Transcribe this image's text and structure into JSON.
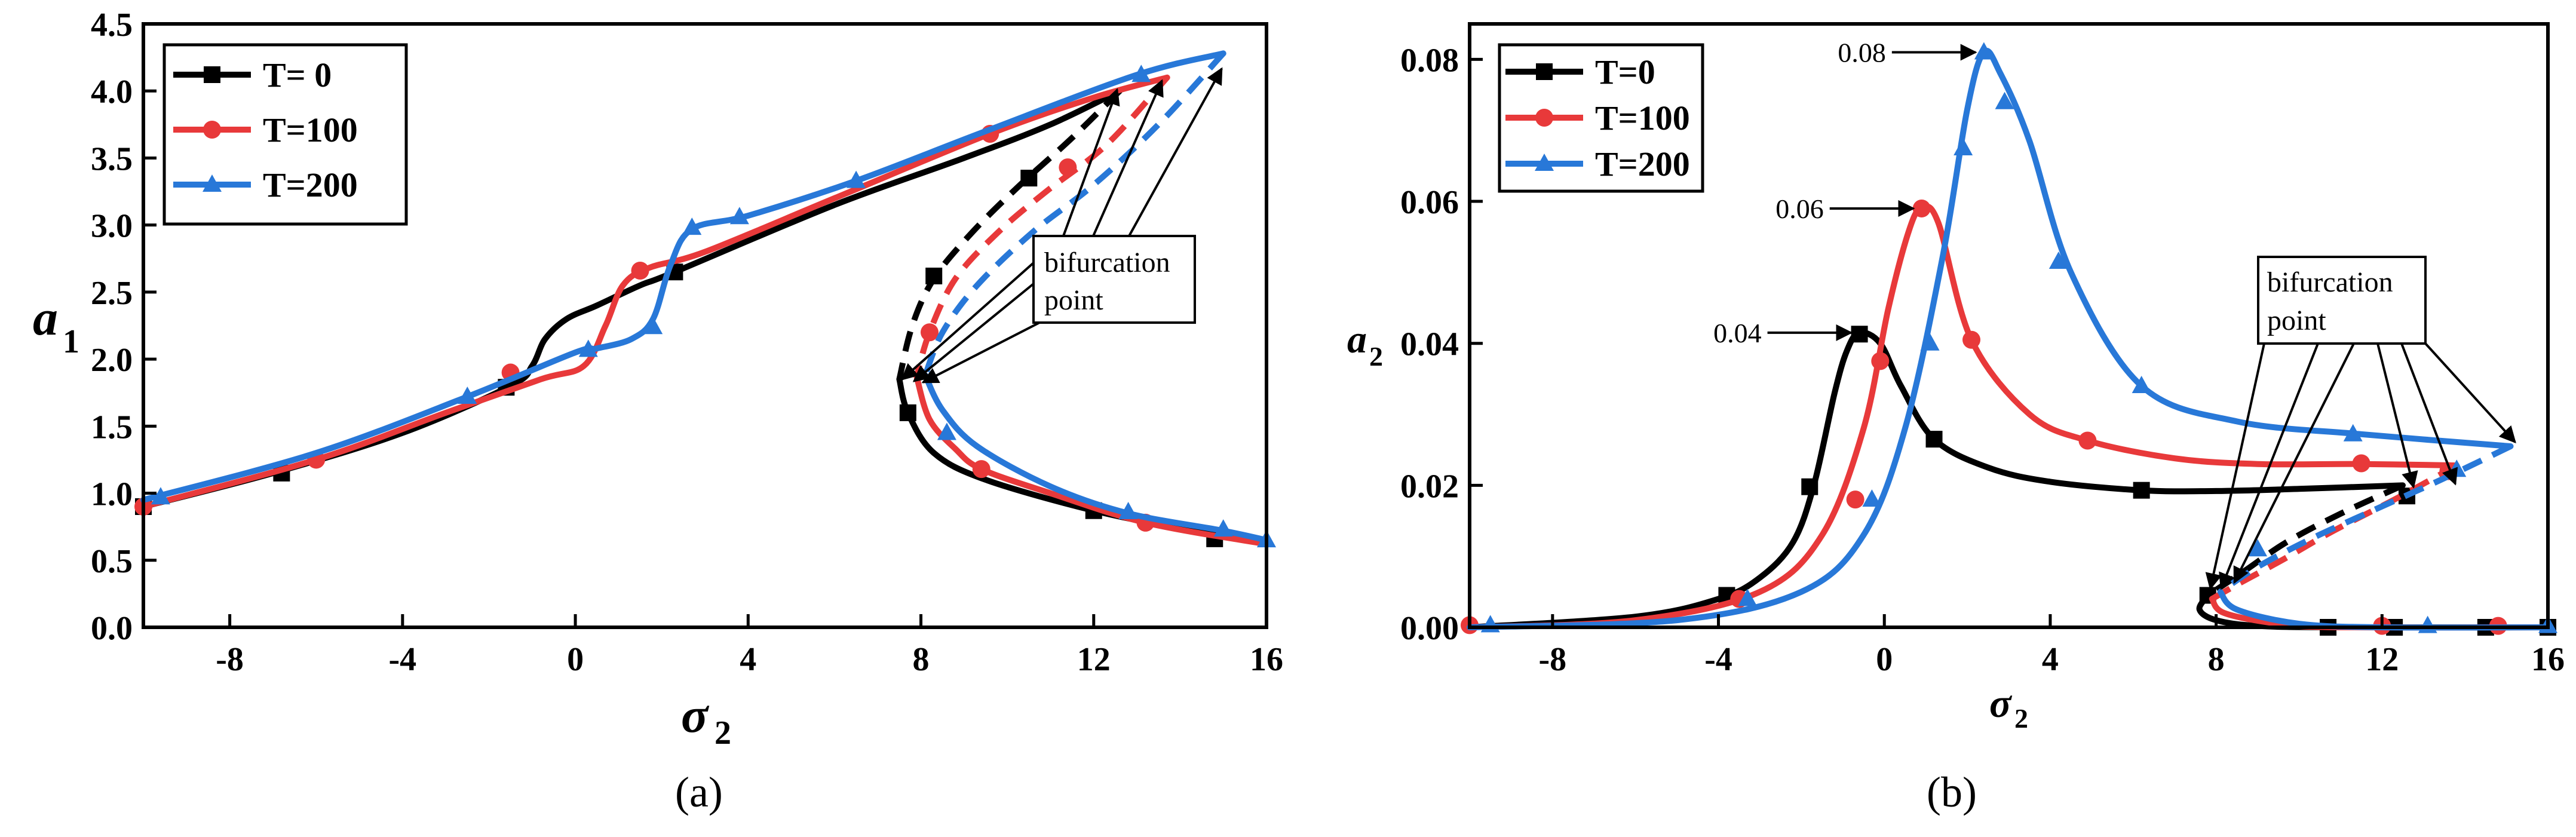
{
  "colors": {
    "T0": "#000000",
    "T100": "#e8393a",
    "T200": "#2878d8"
  },
  "chart_data": [
    {
      "id": "a",
      "type": "line",
      "panel_label": "(a)",
      "xlabel": "σ",
      "xlabel_sub": "2",
      "ylabel": "a",
      "ylabel_sub": "1",
      "xlim": [
        -10,
        16
      ],
      "ylim": [
        0,
        4.5
      ],
      "x_ticks": [
        -8,
        -4,
        0,
        4,
        8,
        12,
        16
      ],
      "x_tick_labels": [
        "-8",
        "-4",
        "0",
        "4",
        "8",
        "12",
        "16"
      ],
      "y_ticks": [
        0,
        0.5,
        1,
        1.5,
        2,
        2.5,
        3,
        3.5,
        4,
        4.5
      ],
      "y_tick_labels": [
        "0.0",
        "0.5",
        "1.0",
        "1.5",
        "2.0",
        "2.5",
        "3.0",
        "3.5",
        "4.0",
        "4.5"
      ],
      "legend": {
        "position": "top-left",
        "entries": [
          "T= 0",
          "T=100",
          "T=200"
        ]
      },
      "annotation": {
        "text_lines": [
          "bifurcation",
          "point"
        ]
      },
      "series": [
        {
          "name": "T= 0",
          "color_key": "T0",
          "marker": "square",
          "upper": [
            [
              -10,
              0.9
            ],
            [
              -7,
              1.15
            ],
            [
              -4,
              1.45
            ],
            [
              -1.5,
              1.8
            ],
            [
              -1,
              1.95
            ],
            [
              -0.7,
              2.15
            ],
            [
              -0.2,
              2.3
            ],
            [
              0.5,
              2.4
            ],
            [
              1.5,
              2.55
            ],
            [
              2.3,
              2.65
            ],
            [
              6,
              3.15
            ],
            [
              9,
              3.5
            ],
            [
              11,
              3.75
            ],
            [
              12.6,
              4.0
            ]
          ],
          "unstable": [
            [
              12.6,
              4.0
            ],
            [
              11.5,
              3.65
            ],
            [
              10.3,
              3.3
            ],
            [
              9.2,
              2.95
            ],
            [
              8.3,
              2.6
            ],
            [
              7.8,
              2.25
            ],
            [
              7.5,
              1.85
            ]
          ],
          "lower": [
            [
              7.5,
              1.85
            ],
            [
              7.7,
              1.6
            ],
            [
              8.3,
              1.3
            ],
            [
              9.5,
              1.1
            ],
            [
              12,
              0.87
            ],
            [
              14,
              0.74
            ],
            [
              16,
              0.63
            ]
          ],
          "markers": [
            [
              -10,
              0.9
            ],
            [
              -6.8,
              1.15
            ],
            [
              -1.6,
              1.79
            ],
            [
              2.3,
              2.65
            ],
            [
              10.5,
              3.35
            ],
            [
              8.3,
              2.62
            ],
            [
              7.7,
              1.6
            ],
            [
              12,
              0.87
            ],
            [
              14.8,
              0.66
            ]
          ]
        },
        {
          "name": "T=100",
          "color_key": "T100",
          "marker": "circle",
          "upper": [
            [
              -10,
              0.9
            ],
            [
              -6,
              1.25
            ],
            [
              -3,
              1.6
            ],
            [
              -0.8,
              1.85
            ],
            [
              0.2,
              1.95
            ],
            [
              0.7,
              2.25
            ],
            [
              1.1,
              2.55
            ],
            [
              1.7,
              2.68
            ],
            [
              3,
              2.8
            ],
            [
              6,
              3.2
            ],
            [
              9.6,
              3.68
            ],
            [
              12,
              3.95
            ],
            [
              13.7,
              4.1
            ]
          ],
          "unstable": [
            [
              13.7,
              4.1
            ],
            [
              12.3,
              3.6
            ],
            [
              10.9,
              3.25
            ],
            [
              9.8,
              2.95
            ],
            [
              8.8,
              2.6
            ],
            [
              8.2,
              2.2
            ],
            [
              7.9,
              1.87
            ]
          ],
          "lower": [
            [
              7.9,
              1.87
            ],
            [
              8.2,
              1.55
            ],
            [
              8.8,
              1.33
            ],
            [
              9.4,
              1.18
            ],
            [
              11,
              1.0
            ],
            [
              13.2,
              0.78
            ],
            [
              16,
              0.62
            ]
          ],
          "markers": [
            [
              -10,
              0.9
            ],
            [
              -6,
              1.25
            ],
            [
              -1.5,
              1.9
            ],
            [
              1.5,
              2.66
            ],
            [
              9.6,
              3.68
            ],
            [
              11.4,
              3.43
            ],
            [
              8.2,
              2.2
            ],
            [
              9.4,
              1.18
            ],
            [
              13.2,
              0.78
            ]
          ]
        },
        {
          "name": "T=200",
          "color_key": "T200",
          "marker": "triangle",
          "upper": [
            [
              -10,
              0.95
            ],
            [
              -6,
              1.3
            ],
            [
              -2.5,
              1.72
            ],
            [
              0,
              2.05
            ],
            [
              0.5,
              2.08
            ],
            [
              1.3,
              2.15
            ],
            [
              1.8,
              2.3
            ],
            [
              2.2,
              2.7
            ],
            [
              2.7,
              2.97
            ],
            [
              4,
              3.07
            ],
            [
              6.5,
              3.33
            ],
            [
              9.5,
              3.7
            ],
            [
              13,
              4.12
            ],
            [
              15,
              4.28
            ]
          ],
          "unstable": [
            [
              15,
              4.28
            ],
            [
              13.5,
              3.75
            ],
            [
              12,
              3.3
            ],
            [
              10.6,
              2.95
            ],
            [
              9.3,
              2.55
            ],
            [
              8.5,
              2.2
            ],
            [
              8.1,
              1.88
            ]
          ],
          "lower": [
            [
              8.1,
              1.88
            ],
            [
              8.5,
              1.62
            ],
            [
              9.3,
              1.35
            ],
            [
              11,
              1.05
            ],
            [
              12.8,
              0.85
            ],
            [
              15,
              0.72
            ],
            [
              16,
              0.65
            ]
          ],
          "markers": [
            [
              -9.6,
              0.97
            ],
            [
              -2.5,
              1.72
            ],
            [
              0.3,
              2.07
            ],
            [
              1.8,
              2.24
            ],
            [
              2.7,
              2.98
            ],
            [
              3.8,
              3.06
            ],
            [
              6.5,
              3.33
            ],
            [
              13.1,
              4.12
            ],
            [
              8.6,
              1.45
            ],
            [
              12.8,
              0.86
            ],
            [
              15,
              0.73
            ],
            [
              16,
              0.65
            ]
          ]
        }
      ]
    },
    {
      "id": "b",
      "type": "line",
      "panel_label": "(b)",
      "xlabel": "σ",
      "xlabel_sub": "2",
      "ylabel": "a",
      "ylabel_sub": "2",
      "xlim": [
        -10,
        16
      ],
      "ylim": [
        0,
        0.085
      ],
      "x_ticks": [
        -8,
        -4,
        0,
        4,
        8,
        12,
        16
      ],
      "x_tick_labels": [
        "-8",
        "-4",
        "0",
        "4",
        "8",
        "12",
        "16"
      ],
      "y_ticks": [
        0,
        0.02,
        0.04,
        0.06,
        0.08
      ],
      "y_tick_labels": [
        "0.00",
        "0.02",
        "0.04",
        "0.06",
        "0.08"
      ],
      "legend": {
        "position": "top-left",
        "entries": [
          "T=0",
          "T=100",
          "T=200"
        ]
      },
      "annotation": {
        "text_lines": [
          "bifurcation",
          "point"
        ]
      },
      "peak_labels": [
        {
          "text": "0.08",
          "x": 2.4,
          "y": 0.081
        },
        {
          "text": "0.06",
          "x": 0.9,
          "y": 0.059
        },
        {
          "text": "0.04",
          "x": -0.6,
          "y": 0.0415
        }
      ],
      "series": [
        {
          "name": "T=0",
          "color_key": "T0",
          "marker": "square",
          "upper": [
            [
              -10,
              0
            ],
            [
              -6,
              0.0015
            ],
            [
              -4,
              0.004
            ],
            [
              -3,
              0.007
            ],
            [
              -2.2,
              0.012
            ],
            [
              -1.7,
              0.02
            ],
            [
              -1.2,
              0.033
            ],
            [
              -0.9,
              0.039
            ],
            [
              -0.6,
              0.0415
            ],
            [
              -0.1,
              0.04
            ],
            [
              0.4,
              0.034
            ],
            [
              1.2,
              0.0265
            ],
            [
              2.5,
              0.0225
            ],
            [
              4,
              0.0205
            ],
            [
              6.2,
              0.0193
            ],
            [
              8,
              0.0192
            ],
            [
              10,
              0.0195
            ],
            [
              12.5,
              0.02
            ]
          ],
          "unstable": [
            [
              12.5,
              0.02
            ],
            [
              11,
              0.016
            ],
            [
              9.7,
              0.012
            ],
            [
              8.7,
              0.008
            ],
            [
              7.8,
              0.0045
            ]
          ],
          "lower": [
            [
              7.8,
              0.0045
            ],
            [
              7.6,
              0.0025
            ],
            [
              8,
              0.001
            ],
            [
              9,
              0.0002
            ],
            [
              11,
              0
            ],
            [
              16,
              0
            ]
          ],
          "markers": [
            [
              -3.8,
              0.0045
            ],
            [
              -1.8,
              0.0198
            ],
            [
              -0.6,
              0.0413
            ],
            [
              1.2,
              0.0265
            ],
            [
              6.2,
              0.0193
            ],
            [
              12.6,
              0.0185
            ],
            [
              7.8,
              0.0045
            ],
            [
              10.7,
              0
            ],
            [
              12.3,
              0
            ],
            [
              14.5,
              0
            ],
            [
              16,
              0
            ]
          ]
        },
        {
          "name": "T=100",
          "color_key": "T100",
          "marker": "circle",
          "upper": [
            [
              -10,
              0
            ],
            [
              -6,
              0.001
            ],
            [
              -3,
              0.005
            ],
            [
              -1.5,
              0.013
            ],
            [
              -0.5,
              0.028
            ],
            [
              0.1,
              0.045
            ],
            [
              0.6,
              0.056
            ],
            [
              0.9,
              0.059
            ],
            [
              1.3,
              0.057
            ],
            [
              2.1,
              0.0405
            ],
            [
              3.5,
              0.03
            ],
            [
              4.9,
              0.0263
            ],
            [
              7,
              0.0238
            ],
            [
              9,
              0.023
            ],
            [
              11.5,
              0.023
            ],
            [
              13.8,
              0.0228
            ]
          ],
          "unstable": [
            [
              13.8,
              0.0228
            ],
            [
              12.3,
              0.018
            ],
            [
              10.8,
              0.0135
            ],
            [
              9.6,
              0.0095
            ],
            [
              8.5,
              0.006
            ],
            [
              7.9,
              0.004
            ]
          ],
          "lower": [
            [
              7.9,
              0.004
            ],
            [
              8.2,
              0.002
            ],
            [
              9.5,
              0.0005
            ],
            [
              11,
              0
            ],
            [
              16,
              0
            ]
          ],
          "markers": [
            [
              -10,
              0.0003
            ],
            [
              -3.5,
              0.004
            ],
            [
              -0.7,
              0.018
            ],
            [
              -0.1,
              0.0375
            ],
            [
              0.9,
              0.059
            ],
            [
              2.1,
              0.0405
            ],
            [
              4.9,
              0.0263
            ],
            [
              11.5,
              0.0231
            ],
            [
              13.6,
              0.022
            ],
            [
              12,
              0.0002
            ],
            [
              14.8,
              0.0002
            ]
          ]
        },
        {
          "name": "T=200",
          "color_key": "T200",
          "marker": "triangle",
          "upper": [
            [
              -10,
              0
            ],
            [
              -5,
              0.001
            ],
            [
              -2,
              0.005
            ],
            [
              -0.5,
              0.013
            ],
            [
              0.5,
              0.028
            ],
            [
              1.4,
              0.052
            ],
            [
              2,
              0.073
            ],
            [
              2.4,
              0.081
            ],
            [
              2.8,
              0.078
            ],
            [
              3.5,
              0.0685
            ],
            [
              4.5,
              0.05
            ],
            [
              6.2,
              0.034
            ],
            [
              8.5,
              0.029
            ],
            [
              11.5,
              0.0272
            ],
            [
              15.1,
              0.0255
            ]
          ],
          "unstable": [
            [
              15.1,
              0.0255
            ],
            [
              13.5,
              0.021
            ],
            [
              11.8,
              0.0165
            ],
            [
              10.3,
              0.0125
            ],
            [
              9,
              0.0085
            ],
            [
              8.1,
              0.005
            ]
          ],
          "lower": [
            [
              8.1,
              0.005
            ],
            [
              8.5,
              0.0025
            ],
            [
              10,
              0.0005
            ],
            [
              12,
              0
            ],
            [
              16,
              0
            ]
          ],
          "markers": [
            [
              -9.5,
              0.0003
            ],
            [
              -3.3,
              0.004
            ],
            [
              -0.3,
              0.018
            ],
            [
              1.1,
              0.04
            ],
            [
              1.9,
              0.0675
            ],
            [
              2.4,
              0.081
            ],
            [
              2.9,
              0.074
            ],
            [
              4.2,
              0.0515
            ],
            [
              6.2,
              0.034
            ],
            [
              11.3,
              0.0272
            ],
            [
              13.8,
              0.0222
            ],
            [
              13.1,
              0.0002
            ],
            [
              16,
              0.0002
            ],
            [
              9,
              0.011
            ]
          ]
        }
      ]
    }
  ]
}
